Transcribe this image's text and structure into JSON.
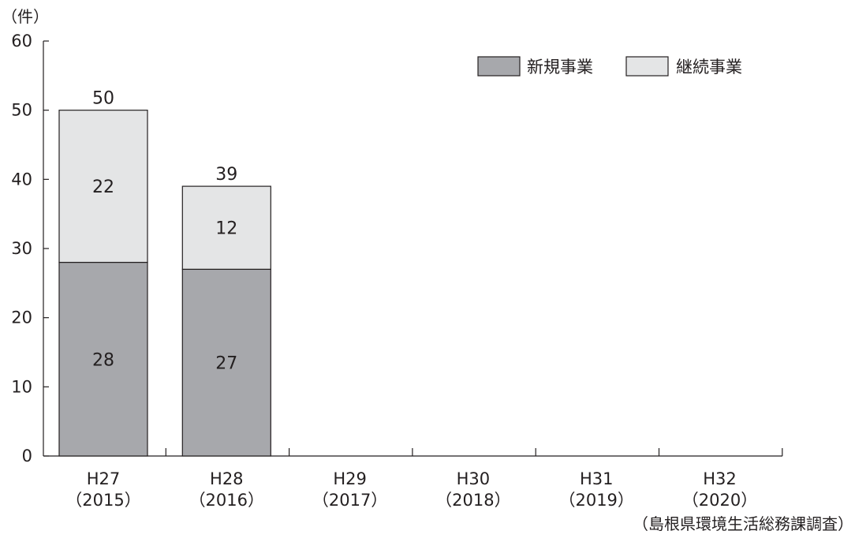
{
  "chart_data": {
    "type": "bar",
    "stacked": true,
    "unit_label": "（件）",
    "source": "（島根県環境生活総務課調査）",
    "categories": [
      [
        "H27",
        "（2015）"
      ],
      [
        "H28",
        "（2016）"
      ],
      [
        "H29",
        "（2017）"
      ],
      [
        "H30",
        "（2018）"
      ],
      [
        "H31",
        "（2019）"
      ],
      [
        "H32",
        "（2020）"
      ]
    ],
    "series": [
      {
        "name": "新規事業",
        "color": "#a7a8ac",
        "values": [
          28,
          27,
          null,
          null,
          null,
          null
        ]
      },
      {
        "name": "継続事業",
        "color": "#e4e5e6",
        "values": [
          22,
          12,
          null,
          null,
          null,
          null
        ]
      }
    ],
    "totals": [
      50,
      39,
      null,
      null,
      null,
      null
    ],
    "ylim": [
      0,
      60
    ],
    "yticks": [
      0,
      10,
      20,
      30,
      40,
      50,
      60
    ],
    "legend_position": "top-right",
    "grid": false
  }
}
